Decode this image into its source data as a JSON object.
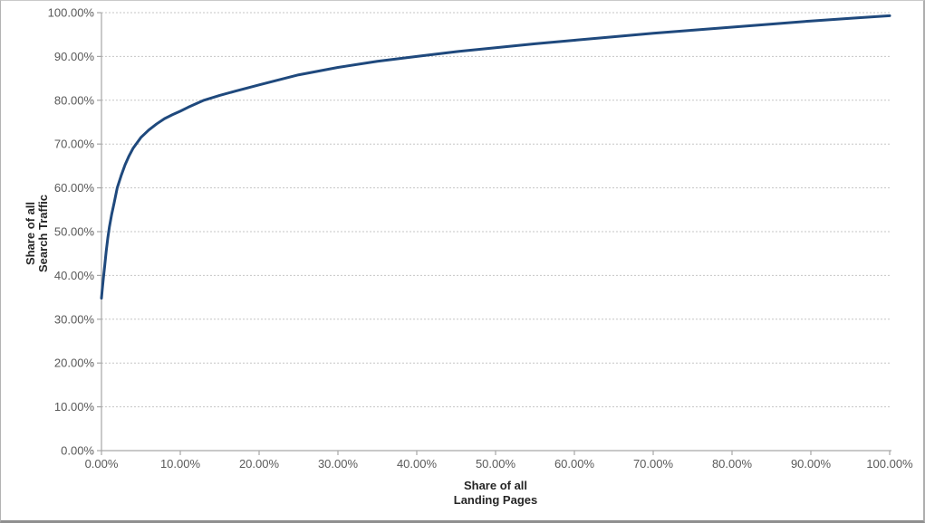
{
  "chart_data": {
    "type": "line",
    "title": "",
    "xlabel_lines": [
      "Share of all",
      "Landing Pages"
    ],
    "ylabel_lines": [
      "Share of all",
      "Search Traffic"
    ],
    "xlim": [
      0,
      100
    ],
    "ylim": [
      0,
      100
    ],
    "x_tick_values": [
      0,
      10,
      20,
      30,
      40,
      50,
      60,
      70,
      80,
      90,
      100
    ],
    "x_tick_labels": [
      "0.00%",
      "10.00%",
      "20.00%",
      "30.00%",
      "40.00%",
      "50.00%",
      "60.00%",
      "70.00%",
      "80.00%",
      "90.00%",
      "100.00%"
    ],
    "y_tick_values": [
      0,
      10,
      20,
      30,
      40,
      50,
      60,
      70,
      80,
      90,
      100
    ],
    "y_tick_labels": [
      "0.00%",
      "10.00%",
      "20.00%",
      "30.00%",
      "40.00%",
      "50.00%",
      "60.00%",
      "70.00%",
      "80.00%",
      "90.00%",
      "100.00%"
    ],
    "grid": "horizontal-dashed",
    "legend": "none",
    "series": [
      {
        "color": "#1F497D",
        "points": [
          [
            0,
            34.8
          ],
          [
            0.1,
            36.8
          ],
          [
            0.25,
            39.5
          ],
          [
            0.4,
            42
          ],
          [
            0.6,
            45.5
          ],
          [
            0.8,
            48.5
          ],
          [
            1,
            51
          ],
          [
            1.3,
            54
          ],
          [
            1.6,
            56.5
          ],
          [
            2,
            60
          ],
          [
            2.5,
            62.8
          ],
          [
            3,
            65.3
          ],
          [
            3.5,
            67.3
          ],
          [
            4,
            69
          ],
          [
            5,
            71.5
          ],
          [
            6,
            73.2
          ],
          [
            7,
            74.6
          ],
          [
            8,
            75.8
          ],
          [
            9,
            76.7
          ],
          [
            10,
            77.5
          ],
          [
            11,
            78.4
          ],
          [
            12,
            79.2
          ],
          [
            13,
            80
          ],
          [
            15,
            81.1
          ],
          [
            17,
            82.1
          ],
          [
            20,
            83.5
          ],
          [
            25,
            85.8
          ],
          [
            30,
            87.5
          ],
          [
            35,
            88.9
          ],
          [
            40,
            90
          ],
          [
            45,
            91.1
          ],
          [
            50,
            92
          ],
          [
            55,
            92.9
          ],
          [
            60,
            93.7
          ],
          [
            65,
            94.5
          ],
          [
            70,
            95.3
          ],
          [
            75,
            96
          ],
          [
            80,
            96.7
          ],
          [
            85,
            97.4
          ],
          [
            90,
            98.1
          ],
          [
            95,
            98.7
          ],
          [
            100,
            99.3
          ]
        ]
      }
    ],
    "colors": {
      "line": "#1F497D",
      "gridline": "#C6C6C6",
      "axis": "#A6A6A6",
      "tick_label": "#595959",
      "axis_title": "#262626",
      "background": "#FFFFFF"
    }
  }
}
